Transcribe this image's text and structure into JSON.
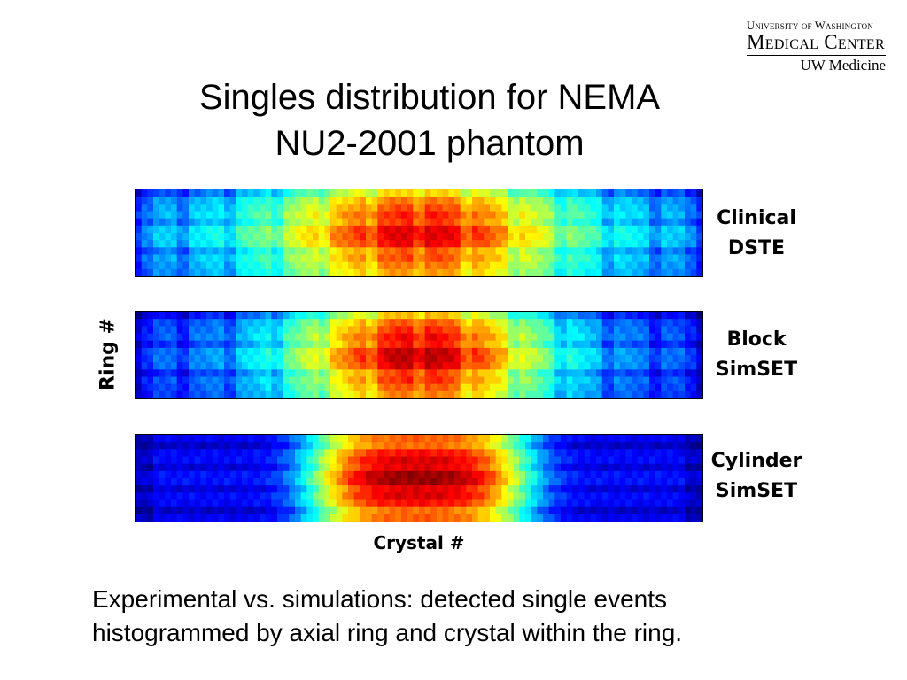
{
  "logo": {
    "line1": "University of Washington",
    "line2": "Medical Center",
    "line3": "UW Medicine"
  },
  "title": [
    "Singles distribution for NEMA",
    "NU2-2001 phantom"
  ],
  "chart_data": {
    "type": "heatmap",
    "xlabel": "Crystal #",
    "ylabel": "Ring #",
    "colormap": "jet",
    "panels": [
      {
        "label": [
          "Clinical",
          "DSTE"
        ]
      },
      {
        "label": [
          "Block",
          "SimSET"
        ]
      },
      {
        "label": [
          "Cylinder",
          "SimSET"
        ]
      }
    ]
  },
  "caption": [
    "Experimental vs. simulations: detected single events",
    "histogrammed by axial ring and crystal within the ring."
  ]
}
